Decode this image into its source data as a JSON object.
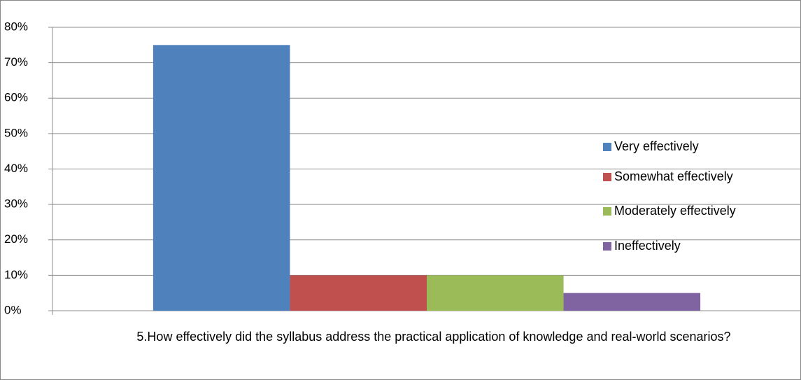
{
  "chart_data": {
    "type": "bar",
    "categories": [
      "5.How effectively did the syllabus address the practical application of knowledge and real-world scenarios?"
    ],
    "series": [
      {
        "name": "Very effectively",
        "color": "#4f81bd",
        "values": [
          75
        ]
      },
      {
        "name": "Somewhat effectively",
        "color": "#c0504d",
        "values": [
          10
        ]
      },
      {
        "name": "Moderately effectively",
        "color": "#9bbb59",
        "values": [
          10
        ]
      },
      {
        "name": "Ineffectively",
        "color": "#8064a2",
        "values": [
          5
        ]
      }
    ],
    "ylim": [
      0,
      80
    ],
    "yticks": [
      {
        "value": 0,
        "label": "0%"
      },
      {
        "value": 10,
        "label": "10%"
      },
      {
        "value": 20,
        "label": "20%"
      },
      {
        "value": 30,
        "label": "30%"
      },
      {
        "value": 40,
        "label": "40%"
      },
      {
        "value": 50,
        "label": "50%"
      },
      {
        "value": 60,
        "label": "60%"
      },
      {
        "value": 70,
        "label": "70%"
      },
      {
        "value": 80,
        "label": "80%"
      }
    ],
    "grid": true,
    "legend": "right"
  }
}
